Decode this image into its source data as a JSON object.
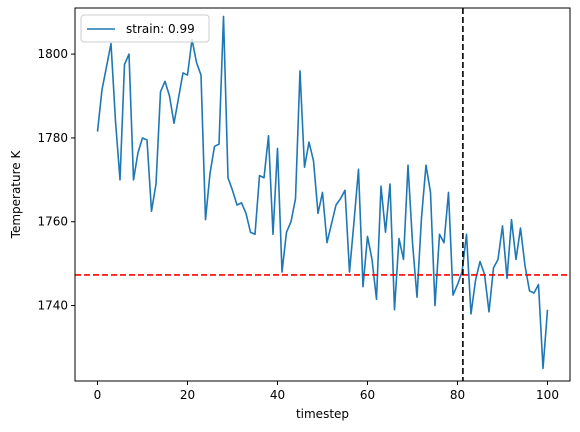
{
  "chart_data": {
    "type": "line",
    "xlabel": "timestep",
    "ylabel": "Temperature K",
    "xlim": [
      -5,
      105
    ],
    "ylim": [
      1722,
      1811
    ],
    "xticks": [
      0,
      20,
      40,
      60,
      80,
      100
    ],
    "yticks": [
      1740,
      1760,
      1780,
      1800
    ],
    "legend_position": "top-left",
    "series": [
      {
        "name": "strain: 0.99",
        "color": "#1f77b4",
        "x": [
          0,
          1,
          2,
          3,
          4,
          5,
          6,
          7,
          8,
          9,
          10,
          11,
          12,
          13,
          14,
          15,
          16,
          17,
          18,
          19,
          20,
          21,
          22,
          23,
          24,
          25,
          26,
          27,
          28,
          29,
          30,
          31,
          32,
          33,
          34,
          35,
          36,
          37,
          38,
          39,
          40,
          41,
          42,
          43,
          44,
          45,
          46,
          47,
          48,
          49,
          50,
          51,
          52,
          53,
          54,
          55,
          56,
          57,
          58,
          59,
          60,
          61,
          62,
          63,
          64,
          65,
          66,
          67,
          68,
          69,
          70,
          71,
          72,
          73,
          74,
          75,
          76,
          77,
          78,
          79,
          80,
          81,
          82,
          83,
          84,
          85,
          86,
          87,
          88,
          89,
          90,
          91,
          92,
          93,
          94,
          95,
          96,
          97,
          98,
          99,
          100
        ],
        "values": [
          1781.5,
          1791.5,
          1797,
          1802.5,
          1784,
          1770,
          1797.5,
          1800,
          1770,
          1776.5,
          1780,
          1779.5,
          1762.5,
          1769,
          1791,
          1793.5,
          1790,
          1783.5,
          1789.5,
          1795.5,
          1795,
          1803.5,
          1798,
          1795,
          1760.5,
          1771.5,
          1778,
          1778.5,
          1809,
          1770.5,
          1767.5,
          1764,
          1764.5,
          1762,
          1757.5,
          1757,
          1771,
          1770.5,
          1780.5,
          1757,
          1777.5,
          1748,
          1757.5,
          1760,
          1765.5,
          1796,
          1773,
          1779,
          1774.5,
          1762,
          1767,
          1755,
          1759.5,
          1764,
          1765.5,
          1767.5,
          1748,
          1760,
          1772.5,
          1744.5,
          1756.5,
          1751,
          1741.5,
          1768.5,
          1757.5,
          1769,
          1739,
          1756,
          1751,
          1773.5,
          1755,
          1742,
          1761,
          1773.5,
          1767,
          1740,
          1757,
          1755,
          1767,
          1742.5,
          1745,
          1748,
          1757,
          1738,
          1746,
          1750.5,
          1747.5,
          1738.5,
          1749,
          1751,
          1759,
          1746.5,
          1760.5,
          1751,
          1758.5,
          1749.5,
          1743.5,
          1743,
          1745,
          1725,
          1739
        ]
      }
    ],
    "reference_lines": [
      {
        "orientation": "horizontal",
        "value": 1747.3,
        "color": "#ff0000",
        "style": "dashed"
      },
      {
        "orientation": "vertical",
        "value": 81.2,
        "color": "#000000",
        "style": "dashed"
      }
    ]
  }
}
